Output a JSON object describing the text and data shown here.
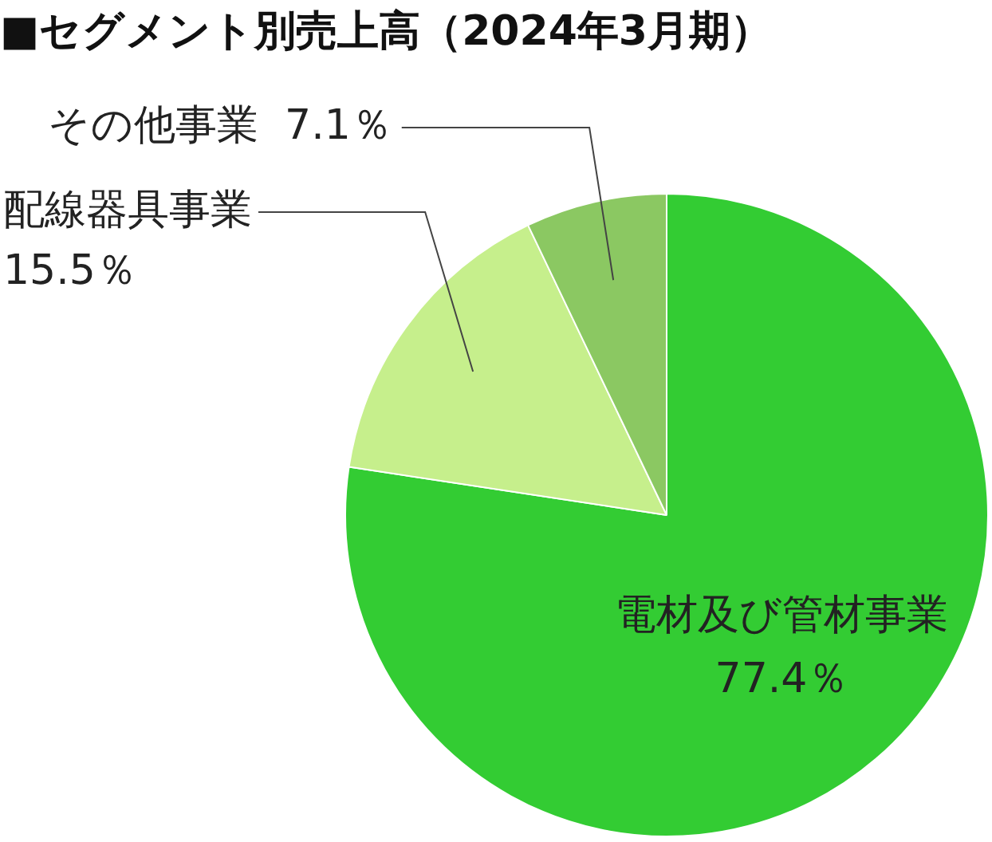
{
  "chart_data": {
    "type": "pie",
    "title": "■セグメント別売上高（2024年3月期）",
    "categories": [
      "電材及び管材事業",
      "配線器具事業",
      "その他事業"
    ],
    "values": [
      77.4,
      15.5,
      7.1
    ],
    "value_labels": [
      "77.4％",
      "15.5％",
      "7.1％"
    ],
    "colors": [
      "#33cc33",
      "#c6ef8c",
      "#8bc862"
    ],
    "legend": false
  }
}
